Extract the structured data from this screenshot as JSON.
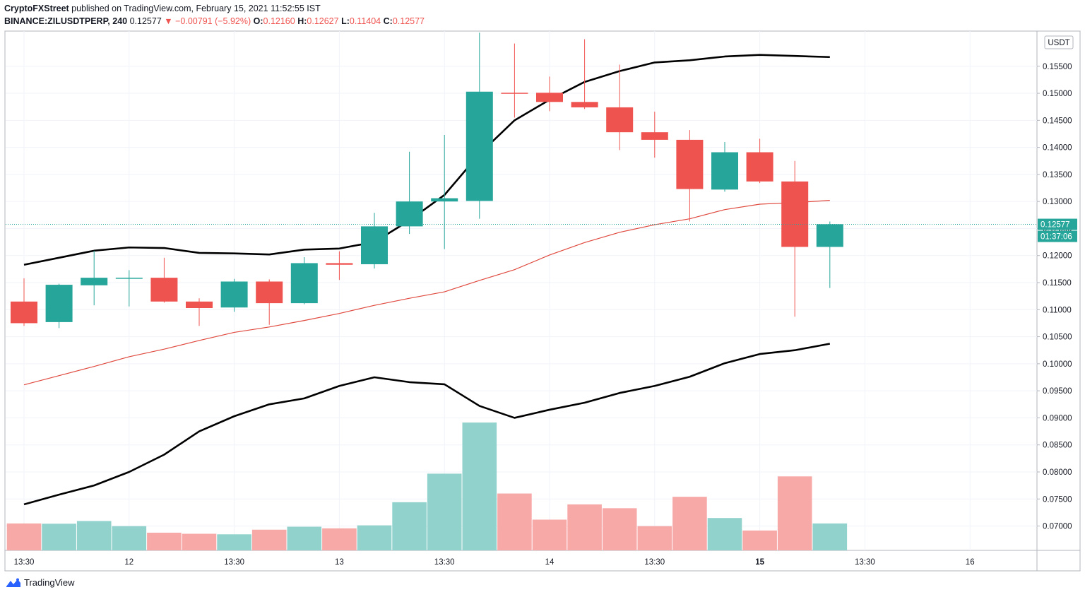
{
  "header": {
    "author": "CryptoFXStreet",
    "published_text": "published on TradingView.com, February 15, 2021 11:52:55 IST",
    "symbol": "BINANCE:ZILUSDTPERP, 240",
    "last": "0.12577",
    "change": "▼ −0.00791 (−5.92%)",
    "o_label": "O:",
    "o_value": "0.12160",
    "h_label": "H:",
    "h_value": "0.12627",
    "l_label": "L:",
    "l_value": "0.11404",
    "c_label": "C:",
    "c_value": "0.12577"
  },
  "footer": {
    "brand": "TradingView"
  },
  "colors": {
    "up": "#26a69a",
    "down": "#ef5350",
    "up_volume": "#92d2cc",
    "down_volume": "#f7a9a7",
    "band": "#000000",
    "basis": "#e04a3f",
    "grid": "#f0f3fa"
  },
  "chart_data": {
    "type": "candlestick",
    "currency": "USDT",
    "y_ticks": [
      "0.07000",
      "0.07500",
      "0.08000",
      "0.08500",
      "0.09000",
      "0.09500",
      "0.10000",
      "0.10500",
      "0.11000",
      "0.11500",
      "0.12000",
      "0.12500",
      "0.13000",
      "0.13500",
      "0.14000",
      "0.14500",
      "0.15000",
      "0.15500"
    ],
    "ylim": [
      0.0655,
      0.1615
    ],
    "x_ticks": [
      {
        "label": "13:30",
        "i": 0,
        "bold": false
      },
      {
        "label": "12",
        "i": 3,
        "bold": false
      },
      {
        "label": "13:30",
        "i": 6,
        "bold": false
      },
      {
        "label": "13",
        "i": 9,
        "bold": false
      },
      {
        "label": "13:30",
        "i": 12,
        "bold": false
      },
      {
        "label": "14",
        "i": 15,
        "bold": false
      },
      {
        "label": "13:30",
        "i": 18,
        "bold": false
      },
      {
        "label": "15",
        "i": 21,
        "bold": true
      },
      {
        "label": "13:30",
        "i": 24,
        "bold": false
      },
      {
        "label": "16",
        "i": 27,
        "bold": false
      }
    ],
    "candles": [
      {
        "o": 0.1115,
        "h": 0.1158,
        "l": 0.107,
        "c": 0.1075
      },
      {
        "o": 0.1077,
        "h": 0.1148,
        "l": 0.1066,
        "c": 0.1146
      },
      {
        "o": 0.1145,
        "h": 0.1209,
        "l": 0.1108,
        "c": 0.1159
      },
      {
        "o": 0.1158,
        "h": 0.1173,
        "l": 0.1106,
        "c": 0.1159
      },
      {
        "o": 0.1159,
        "h": 0.1196,
        "l": 0.1113,
        "c": 0.1115
      },
      {
        "o": 0.1115,
        "h": 0.1121,
        "l": 0.107,
        "c": 0.1103
      },
      {
        "o": 0.1104,
        "h": 0.1157,
        "l": 0.1096,
        "c": 0.1152
      },
      {
        "o": 0.1152,
        "h": 0.1156,
        "l": 0.1072,
        "c": 0.1112
      },
      {
        "o": 0.1112,
        "h": 0.1197,
        "l": 0.111,
        "c": 0.1186
      },
      {
        "o": 0.1186,
        "h": 0.1208,
        "l": 0.1155,
        "c": 0.1183
      },
      {
        "o": 0.1184,
        "h": 0.1279,
        "l": 0.1176,
        "c": 0.1254
      },
      {
        "o": 0.1254,
        "h": 0.1392,
        "l": 0.124,
        "c": 0.13
      },
      {
        "o": 0.13,
        "h": 0.1423,
        "l": 0.1212,
        "c": 0.1306
      },
      {
        "o": 0.1301,
        "h": 0.1612,
        "l": 0.1268,
        "c": 0.1503
      },
      {
        "o": 0.1501,
        "h": 0.1592,
        "l": 0.1455,
        "c": 0.15
      },
      {
        "o": 0.1501,
        "h": 0.1531,
        "l": 0.1467,
        "c": 0.1484
      },
      {
        "o": 0.1484,
        "h": 0.16,
        "l": 0.1471,
        "c": 0.1474
      },
      {
        "o": 0.1474,
        "h": 0.1553,
        "l": 0.1395,
        "c": 0.1428
      },
      {
        "o": 0.1428,
        "h": 0.1466,
        "l": 0.1381,
        "c": 0.1414
      },
      {
        "o": 0.1414,
        "h": 0.1432,
        "l": 0.1263,
        "c": 0.1323
      },
      {
        "o": 0.1322,
        "h": 0.141,
        "l": 0.1318,
        "c": 0.1391
      },
      {
        "o": 0.1391,
        "h": 0.1416,
        "l": 0.1334,
        "c": 0.1337
      },
      {
        "o": 0.1337,
        "h": 0.1375,
        "l": 0.1087,
        "c": 0.1216
      },
      {
        "o": 0.1216,
        "h": 0.1263,
        "l": 0.114,
        "c": 0.1258
      }
    ],
    "volume": [
      {
        "v": 0.495,
        "up": false
      },
      {
        "v": 0.49,
        "up": true
      },
      {
        "v": 0.54,
        "up": true
      },
      {
        "v": 0.445,
        "up": true
      },
      {
        "v": 0.325,
        "up": false
      },
      {
        "v": 0.305,
        "up": false
      },
      {
        "v": 0.295,
        "up": true
      },
      {
        "v": 0.38,
        "up": false
      },
      {
        "v": 0.435,
        "up": true
      },
      {
        "v": 0.405,
        "up": false
      },
      {
        "v": 0.46,
        "up": true
      },
      {
        "v": 0.885,
        "up": true
      },
      {
        "v": 1.41,
        "up": true
      },
      {
        "v": 2.35,
        "up": true
      },
      {
        "v": 1.045,
        "up": false
      },
      {
        "v": 0.565,
        "up": false
      },
      {
        "v": 0.845,
        "up": false
      },
      {
        "v": 0.775,
        "up": false
      },
      {
        "v": 0.445,
        "up": false
      },
      {
        "v": 0.985,
        "up": false
      },
      {
        "v": 0.595,
        "up": true
      },
      {
        "v": 0.365,
        "up": false
      },
      {
        "v": 1.36,
        "up": false
      },
      {
        "v": 0.495,
        "up": true
      }
    ],
    "bollinger": {
      "upper": [
        0.1183,
        0.1196,
        0.1209,
        0.1215,
        0.1214,
        0.1205,
        0.1204,
        0.1202,
        0.1211,
        0.1213,
        0.1225,
        0.1265,
        0.1312,
        0.1388,
        0.145,
        0.1488,
        0.1521,
        0.1541,
        0.1557,
        0.1561,
        0.1568,
        0.1571,
        0.1569,
        0.1567
      ],
      "basis": [
        0.0961,
        0.0978,
        0.0995,
        0.1013,
        0.1027,
        0.1043,
        0.1058,
        0.1068,
        0.108,
        0.1093,
        0.1108,
        0.1121,
        0.1133,
        0.1154,
        0.1174,
        0.1201,
        0.1224,
        0.1243,
        0.1257,
        0.1268,
        0.1285,
        0.1295,
        0.1298,
        0.1302
      ],
      "lower": [
        0.074,
        0.0758,
        0.0775,
        0.08,
        0.0832,
        0.0875,
        0.0903,
        0.0925,
        0.0936,
        0.0959,
        0.0975,
        0.0966,
        0.0962,
        0.0922,
        0.09,
        0.0915,
        0.0928,
        0.0946,
        0.0959,
        0.0976,
        0.1001,
        0.1018,
        0.1025,
        0.1037
      ]
    },
    "last_price": "0.12577",
    "countdown": "01:37:06"
  }
}
